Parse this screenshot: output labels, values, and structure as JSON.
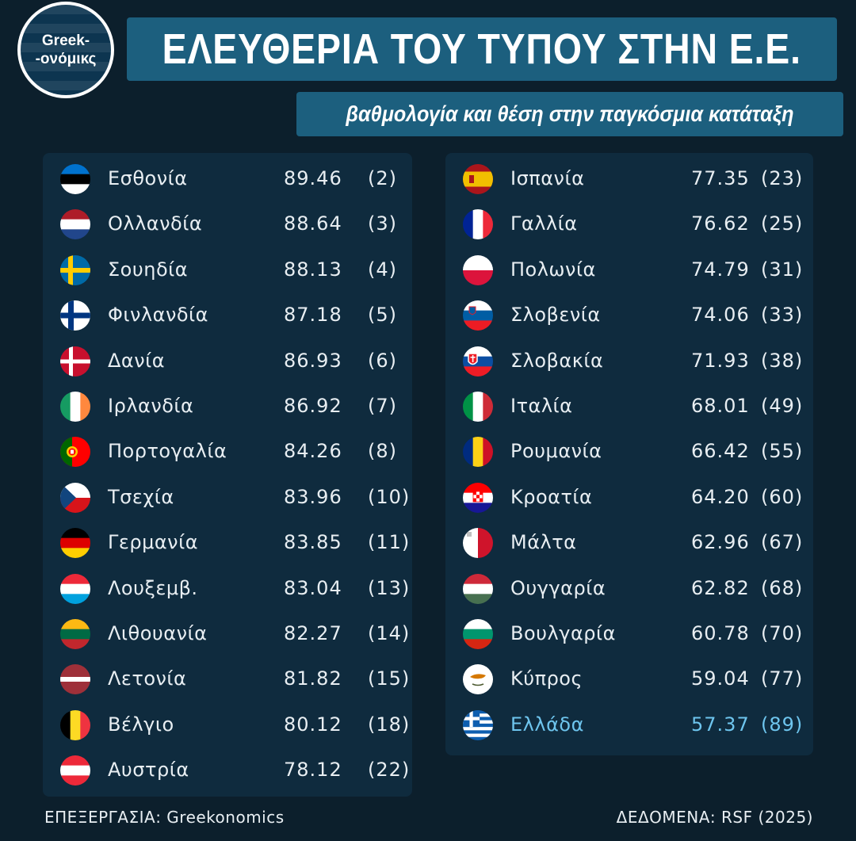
{
  "header": {
    "logo_line1": "Greek-",
    "logo_line2": "-ονόμικς",
    "title": "ΕΛΕΥΘΕΡΙΑ ΤΟΥ ΤΥΠΟΥ ΣΤΗΝ Ε.Ε.",
    "subtitle": "βαθμολογία και θέση στην παγκόσμια κατάταξη"
  },
  "footer": {
    "left": "ΕΠΕΞΕΡΓΑΣΙΑ: Greekonomics",
    "right": "ΔΕΔΟΜΕΝΑ: RSF (2025)"
  },
  "colors": {
    "background": "#0c1f2c",
    "banner": "#1c5f7e",
    "panel": "#0f2b3e",
    "text": "#e8eef2",
    "highlight": "#6ec5ee"
  },
  "chart_data": {
    "type": "table",
    "title": "ΕΛΕΥΘΕΡΙΑ ΤΟΥ ΤΥΠΟΥ ΣΤΗΝ Ε.Ε.",
    "subtitle": "βαθμολογία και θέση στην παγκόσμια κατάταξη",
    "highlight_country": "Ελλάδα",
    "left_column": [
      {
        "country": "Εσθονία",
        "score": "89.46",
        "rank": "(2)",
        "flag": "estonia-flag-icon"
      },
      {
        "country": "Ολλανδία",
        "score": "88.64",
        "rank": "(3)",
        "flag": "netherlands-flag-icon"
      },
      {
        "country": "Σουηδία",
        "score": "88.13",
        "rank": "(4)",
        "flag": "sweden-flag-icon"
      },
      {
        "country": "Φινλανδία",
        "score": "87.18",
        "rank": "(5)",
        "flag": "finland-flag-icon"
      },
      {
        "country": "Δανία",
        "score": "86.93",
        "rank": "(6)",
        "flag": "denmark-flag-icon"
      },
      {
        "country": "Ιρλανδία",
        "score": "86.92",
        "rank": "(7)",
        "flag": "ireland-flag-icon"
      },
      {
        "country": "Πορτογαλία",
        "score": "84.26",
        "rank": "(8)",
        "flag": "portugal-flag-icon"
      },
      {
        "country": "Τσεχία",
        "score": "83.96",
        "rank": "(10)",
        "flag": "czechia-flag-icon"
      },
      {
        "country": "Γερμανία",
        "score": "83.85",
        "rank": "(11)",
        "flag": "germany-flag-icon"
      },
      {
        "country": "Λουξεμβ.",
        "score": "83.04",
        "rank": "(13)",
        "flag": "luxembourg-flag-icon"
      },
      {
        "country": "Λιθουανία",
        "score": "82.27",
        "rank": "(14)",
        "flag": "lithuania-flag-icon"
      },
      {
        "country": "Λετονία",
        "score": "81.82",
        "rank": "(15)",
        "flag": "latvia-flag-icon"
      },
      {
        "country": "Βέλγιο",
        "score": "80.12",
        "rank": "(18)",
        "flag": "belgium-flag-icon"
      },
      {
        "country": "Αυστρία",
        "score": "78.12",
        "rank": "(22)",
        "flag": "austria-flag-icon"
      }
    ],
    "right_column": [
      {
        "country": "Ισπανία",
        "score": "77.35",
        "rank": "(23)",
        "flag": "spain-flag-icon"
      },
      {
        "country": "Γαλλία",
        "score": "76.62",
        "rank": "(25)",
        "flag": "france-flag-icon"
      },
      {
        "country": "Πολωνία",
        "score": "74.79",
        "rank": "(31)",
        "flag": "poland-flag-icon"
      },
      {
        "country": "Σλοβενία",
        "score": "74.06",
        "rank": "(33)",
        "flag": "slovenia-flag-icon"
      },
      {
        "country": "Σλοβακία",
        "score": "71.93",
        "rank": "(38)",
        "flag": "slovakia-flag-icon"
      },
      {
        "country": "Ιταλία",
        "score": "68.01",
        "rank": "(49)",
        "flag": "italy-flag-icon"
      },
      {
        "country": "Ρουμανία",
        "score": "66.42",
        "rank": "(55)",
        "flag": "romania-flag-icon"
      },
      {
        "country": "Κροατία",
        "score": "64.20",
        "rank": "(60)",
        "flag": "croatia-flag-icon"
      },
      {
        "country": "Μάλτα",
        "score": "62.96",
        "rank": "(67)",
        "flag": "malta-flag-icon"
      },
      {
        "country": "Ουγγαρία",
        "score": "62.82",
        "rank": "(68)",
        "flag": "hungary-flag-icon"
      },
      {
        "country": "Βουλγαρία",
        "score": "60.78",
        "rank": "(70)",
        "flag": "bulgaria-flag-icon"
      },
      {
        "country": "Κύπρος",
        "score": "59.04",
        "rank": "(77)",
        "flag": "cyprus-flag-icon"
      },
      {
        "country": "Ελλάδα",
        "score": "57.37",
        "rank": "(89)",
        "flag": "greece-flag-icon"
      }
    ]
  }
}
